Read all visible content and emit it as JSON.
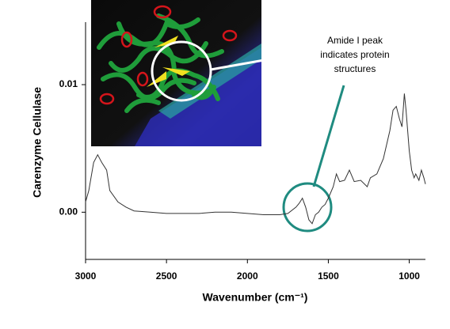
{
  "chart_data": {
    "type": "line",
    "ylabel": "Carenzyme Cellulase",
    "xlabel": "Wavenumber (cm⁻¹)",
    "annotation": [
      "Amide I peak",
      "indicates protein",
      "structures"
    ],
    "color": "#333333",
    "annotation_color": "#1f8b80",
    "x": [
      3000,
      2980,
      2950,
      2925,
      2900,
      2870,
      2850,
      2800,
      2750,
      2700,
      2600,
      2500,
      2400,
      2300,
      2200,
      2100,
      2000,
      1900,
      1800,
      1750,
      1700,
      1680,
      1660,
      1640,
      1620,
      1600,
      1580,
      1560,
      1540,
      1520,
      1500,
      1470,
      1450,
      1430,
      1400,
      1370,
      1340,
      1300,
      1260,
      1240,
      1200,
      1160,
      1120,
      1100,
      1080,
      1060,
      1045,
      1030,
      1020,
      1000,
      985,
      970,
      960,
      940,
      925,
      910,
      900
    ],
    "values": [
      0.0008,
      0.0017,
      0.0039,
      0.0045,
      0.0039,
      0.0033,
      0.0017,
      0.0008,
      0.0004,
      0.0001,
      0,
      -0.0001,
      -0.0001,
      -0.0001,
      0,
      0,
      -0.0001,
      -0.0002,
      -0.0002,
      -0.0001,
      0.0004,
      0.0007,
      0.0011,
      0.0004,
      -0.0006,
      -0.0009,
      -0.0002,
      0,
      0.0004,
      0.0006,
      0.0011,
      0.002,
      0.003,
      0.0024,
      0.0025,
      0.0033,
      0.0024,
      0.0025,
      0.002,
      0.0027,
      0.003,
      0.0042,
      0.0064,
      0.008,
      0.0083,
      0.0073,
      0.0067,
      0.0093,
      0.008,
      0.0048,
      0.0033,
      0.0027,
      0.003,
      0.0025,
      0.0033,
      0.0027,
      0.0022
    ],
    "xlim": [
      3000,
      900
    ],
    "xticks": [
      3000,
      2500,
      2000,
      1500,
      1000
    ],
    "ylim": [
      -0.0037,
      0.0149
    ],
    "yticks": [
      {
        "value": 0,
        "label": "0.00"
      },
      0.01
    ]
  }
}
